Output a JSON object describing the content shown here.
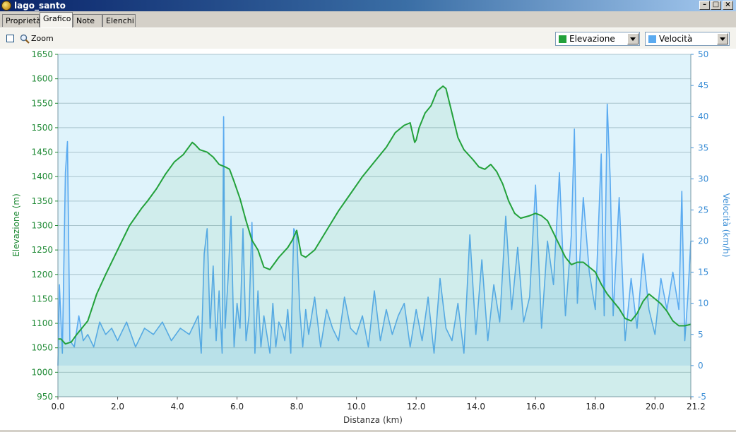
{
  "window": {
    "title": "lago_santo",
    "min_icon": "minimize-icon",
    "max_icon": "maximize-icon",
    "close_icon": "close-icon"
  },
  "tabs": [
    {
      "label": "Proprietà",
      "active": false
    },
    {
      "label": "Grafico",
      "active": true
    },
    {
      "label": "Note",
      "active": false
    },
    {
      "label": "Elenchi",
      "active": false
    }
  ],
  "toolbar": {
    "zoom_label": "Zoom",
    "zoom_checked": false,
    "primary_select": {
      "value": "Elevazione",
      "color": "#22a13a"
    },
    "secondary_select": {
      "value": "Velocità",
      "color": "#5aaaf0"
    }
  },
  "chart_data": {
    "type": "line",
    "xlabel": "Distanza  (km)",
    "ylabel": "Elevazione (m)",
    "y2label": "Velocità (km/h)",
    "xlim": [
      0,
      21.2
    ],
    "ylim": [
      950,
      1650
    ],
    "y2lim": [
      -5,
      50
    ],
    "xticks": [
      "0.0",
      "2.0",
      "4.0",
      "6.0",
      "8.0",
      "10.0",
      "12.0",
      "14.0",
      "16.0",
      "18.0",
      "20.0",
      "21.2"
    ],
    "xtick_values": [
      0,
      2,
      4,
      6,
      8,
      10,
      12,
      14,
      16,
      18,
      20,
      21.2
    ],
    "yticks": [
      "950",
      "1000",
      "1050",
      "1100",
      "1150",
      "1200",
      "1250",
      "1300",
      "1350",
      "1400",
      "1450",
      "1500",
      "1550",
      "1600",
      "1650"
    ],
    "y2ticks": [
      "-5",
      "0",
      "5",
      "10",
      "15",
      "20",
      "25",
      "30",
      "35",
      "40",
      "45",
      "50"
    ],
    "grid": true,
    "background": "#dff3fb",
    "series": [
      {
        "name": "Elevazione",
        "axis": "left",
        "color": "#22a13a",
        "x": [
          0,
          0.1,
          0.25,
          0.45,
          0.6,
          0.8,
          1.0,
          1.3,
          1.6,
          2.0,
          2.4,
          2.8,
          3.0,
          3.3,
          3.6,
          3.9,
          4.2,
          4.5,
          4.6,
          4.75,
          5.0,
          5.2,
          5.4,
          5.6,
          5.75,
          5.9,
          6.1,
          6.3,
          6.5,
          6.7,
          6.9,
          7.1,
          7.4,
          7.7,
          7.85,
          8.0,
          8.15,
          8.3,
          8.6,
          9.0,
          9.4,
          9.8,
          10.2,
          10.6,
          11.0,
          11.3,
          11.6,
          11.8,
          11.95,
          12.0,
          12.1,
          12.3,
          12.5,
          12.7,
          12.9,
          13.0,
          13.2,
          13.4,
          13.6,
          13.9,
          14.1,
          14.3,
          14.5,
          14.7,
          14.9,
          15.1,
          15.3,
          15.5,
          15.8,
          16.0,
          16.2,
          16.4,
          16.6,
          16.8,
          17.0,
          17.2,
          17.4,
          17.6,
          17.8,
          18.0,
          18.2,
          18.4,
          18.6,
          18.8,
          19.0,
          19.2,
          19.4,
          19.6,
          19.8,
          20.0,
          20.2,
          20.4,
          20.6,
          20.8,
          21.0,
          21.2
        ],
        "values": [
          1068,
          1068,
          1058,
          1062,
          1075,
          1090,
          1105,
          1160,
          1200,
          1250,
          1300,
          1335,
          1350,
          1375,
          1405,
          1430,
          1445,
          1470,
          1465,
          1455,
          1450,
          1440,
          1425,
          1420,
          1415,
          1390,
          1355,
          1310,
          1270,
          1250,
          1215,
          1210,
          1235,
          1255,
          1270,
          1290,
          1240,
          1235,
          1250,
          1290,
          1330,
          1365,
          1400,
          1430,
          1460,
          1490,
          1505,
          1510,
          1470,
          1475,
          1500,
          1530,
          1545,
          1575,
          1585,
          1580,
          1530,
          1480,
          1455,
          1435,
          1420,
          1415,
          1425,
          1410,
          1385,
          1350,
          1325,
          1315,
          1320,
          1325,
          1320,
          1310,
          1285,
          1260,
          1235,
          1220,
          1225,
          1225,
          1215,
          1205,
          1180,
          1160,
          1145,
          1130,
          1110,
          1105,
          1120,
          1145,
          1160,
          1150,
          1140,
          1125,
          1105,
          1095,
          1095,
          1098
        ]
      },
      {
        "name": "Velocità",
        "axis": "right",
        "color": "#5aaaf0",
        "x": [
          0,
          0.05,
          0.15,
          0.25,
          0.32,
          0.4,
          0.55,
          0.7,
          0.85,
          1.0,
          1.2,
          1.4,
          1.6,
          1.8,
          2.0,
          2.3,
          2.6,
          2.9,
          3.2,
          3.5,
          3.8,
          4.1,
          4.4,
          4.7,
          4.8,
          4.9,
          5.0,
          5.1,
          5.2,
          5.3,
          5.4,
          5.5,
          5.55,
          5.6,
          5.7,
          5.8,
          5.9,
          6.0,
          6.1,
          6.2,
          6.3,
          6.4,
          6.5,
          6.6,
          6.7,
          6.8,
          6.9,
          7.0,
          7.1,
          7.2,
          7.3,
          7.4,
          7.5,
          7.6,
          7.7,
          7.8,
          7.9,
          8.0,
          8.1,
          8.2,
          8.3,
          8.4,
          8.6,
          8.8,
          9.0,
          9.2,
          9.4,
          9.6,
          9.8,
          10.0,
          10.2,
          10.4,
          10.6,
          10.8,
          11.0,
          11.2,
          11.4,
          11.6,
          11.8,
          12.0,
          12.2,
          12.4,
          12.6,
          12.8,
          13.0,
          13.2,
          13.4,
          13.6,
          13.8,
          14.0,
          14.2,
          14.4,
          14.6,
          14.8,
          15.0,
          15.2,
          15.4,
          15.6,
          15.8,
          16.0,
          16.2,
          16.4,
          16.6,
          16.8,
          17.0,
          17.2,
          17.3,
          17.4,
          17.6,
          17.8,
          18.0,
          18.2,
          18.3,
          18.4,
          18.5,
          18.6,
          18.8,
          19.0,
          19.2,
          19.4,
          19.6,
          19.8,
          20.0,
          20.2,
          20.4,
          20.6,
          20.8,
          20.9,
          21.0,
          21.1,
          21.2
        ],
        "values": [
          0,
          13,
          2,
          31,
          36,
          4,
          3,
          8,
          4,
          5,
          3,
          7,
          5,
          6,
          4,
          7,
          3,
          6,
          5,
          7,
          4,
          6,
          5,
          8,
          2,
          18,
          22,
          6,
          16,
          4,
          12,
          2,
          40,
          6,
          14,
          24,
          3,
          10,
          6,
          22,
          4,
          8,
          23,
          2,
          12,
          3,
          8,
          5,
          2,
          10,
          3,
          7,
          6,
          4,
          9,
          2,
          22,
          21,
          9,
          3,
          9,
          5,
          11,
          3,
          9,
          6,
          4,
          11,
          6,
          5,
          8,
          3,
          12,
          4,
          9,
          5,
          8,
          10,
          3,
          9,
          4,
          11,
          2,
          14,
          6,
          4,
          10,
          2,
          21,
          5,
          17,
          4,
          13,
          7,
          24,
          9,
          19,
          7,
          11,
          29,
          6,
          20,
          13,
          31,
          8,
          21,
          38,
          10,
          27,
          15,
          9,
          34,
          8,
          42,
          30,
          8,
          27,
          4,
          14,
          6,
          18,
          9,
          5,
          14,
          9,
          15,
          9,
          28,
          4,
          11,
          20
        ]
      }
    ]
  }
}
